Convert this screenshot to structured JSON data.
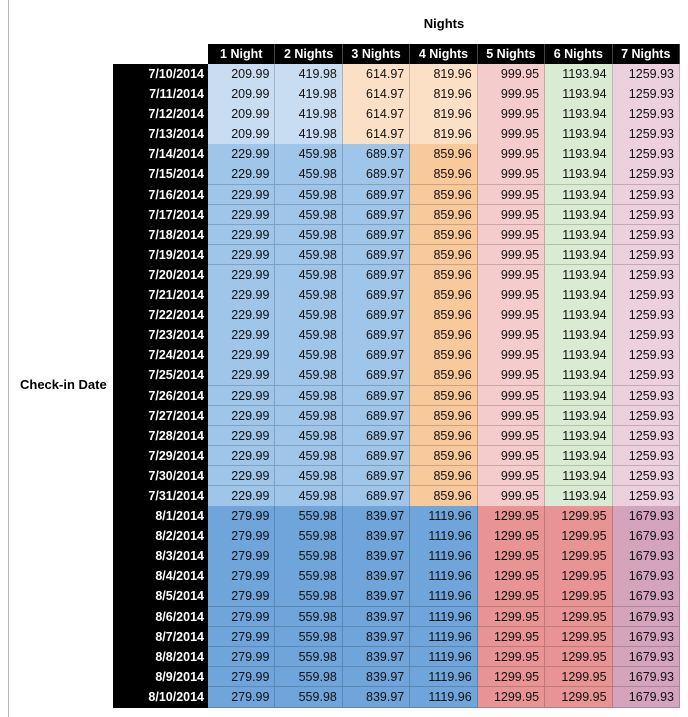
{
  "header": {
    "title": "Nights"
  },
  "row_header": "Check-in Date",
  "table": {
    "columns": [
      "1 Night",
      "2 Nights",
      "3 Nights",
      "4 Nights",
      "5 Nights",
      "6 Nights",
      "7 Nights"
    ],
    "rows": [
      [
        "7/10/2014",
        "209.99",
        "419.98",
        "614.97",
        "819.96",
        "999.95",
        "1193.94",
        "1259.93"
      ],
      [
        "7/11/2014",
        "209.99",
        "419.98",
        "614.97",
        "819.96",
        "999.95",
        "1193.94",
        "1259.93"
      ],
      [
        "7/12/2014",
        "209.99",
        "419.98",
        "614.97",
        "819.96",
        "999.95",
        "1193.94",
        "1259.93"
      ],
      [
        "7/13/2014",
        "209.99",
        "419.98",
        "614.97",
        "819.96",
        "999.95",
        "1193.94",
        "1259.93"
      ],
      [
        "7/14/2014",
        "229.99",
        "459.98",
        "689.97",
        "859.96",
        "999.95",
        "1193.94",
        "1259.93"
      ],
      [
        "7/15/2014",
        "229.99",
        "459.98",
        "689.97",
        "859.96",
        "999.95",
        "1193.94",
        "1259.93"
      ],
      [
        "7/16/2014",
        "229.99",
        "459.98",
        "689.97",
        "859.96",
        "999.95",
        "1193.94",
        "1259.93"
      ],
      [
        "7/17/2014",
        "229.99",
        "459.98",
        "689.97",
        "859.96",
        "999.95",
        "1193.94",
        "1259.93"
      ],
      [
        "7/18/2014",
        "229.99",
        "459.98",
        "689.97",
        "859.96",
        "999.95",
        "1193.94",
        "1259.93"
      ],
      [
        "7/19/2014",
        "229.99",
        "459.98",
        "689.97",
        "859.96",
        "999.95",
        "1193.94",
        "1259.93"
      ],
      [
        "7/20/2014",
        "229.99",
        "459.98",
        "689.97",
        "859.96",
        "999.95",
        "1193.94",
        "1259.93"
      ],
      [
        "7/21/2014",
        "229.99",
        "459.98",
        "689.97",
        "859.96",
        "999.95",
        "1193.94",
        "1259.93"
      ],
      [
        "7/22/2014",
        "229.99",
        "459.98",
        "689.97",
        "859.96",
        "999.95",
        "1193.94",
        "1259.93"
      ],
      [
        "7/23/2014",
        "229.99",
        "459.98",
        "689.97",
        "859.96",
        "999.95",
        "1193.94",
        "1259.93"
      ],
      [
        "7/24/2014",
        "229.99",
        "459.98",
        "689.97",
        "859.96",
        "999.95",
        "1193.94",
        "1259.93"
      ],
      [
        "7/25/2014",
        "229.99",
        "459.98",
        "689.97",
        "859.96",
        "999.95",
        "1193.94",
        "1259.93"
      ],
      [
        "7/26/2014",
        "229.99",
        "459.98",
        "689.97",
        "859.96",
        "999.95",
        "1193.94",
        "1259.93"
      ],
      [
        "7/27/2014",
        "229.99",
        "459.98",
        "689.97",
        "859.96",
        "999.95",
        "1193.94",
        "1259.93"
      ],
      [
        "7/28/2014",
        "229.99",
        "459.98",
        "689.97",
        "859.96",
        "999.95",
        "1193.94",
        "1259.93"
      ],
      [
        "7/29/2014",
        "229.99",
        "459.98",
        "689.97",
        "859.96",
        "999.95",
        "1193.94",
        "1259.93"
      ],
      [
        "7/30/2014",
        "229.99",
        "459.98",
        "689.97",
        "859.96",
        "999.95",
        "1193.94",
        "1259.93"
      ],
      [
        "7/31/2014",
        "229.99",
        "459.98",
        "689.97",
        "859.96",
        "999.95",
        "1193.94",
        "1259.93"
      ],
      [
        "8/1/2014",
        "279.99",
        "559.98",
        "839.97",
        "1119.96",
        "1299.95",
        "1299.95",
        "1679.93"
      ],
      [
        "8/2/2014",
        "279.99",
        "559.98",
        "839.97",
        "1119.96",
        "1299.95",
        "1299.95",
        "1679.93"
      ],
      [
        "8/3/2014",
        "279.99",
        "559.98",
        "839.97",
        "1119.96",
        "1299.95",
        "1299.95",
        "1679.93"
      ],
      [
        "8/4/2014",
        "279.99",
        "559.98",
        "839.97",
        "1119.96",
        "1299.95",
        "1299.95",
        "1679.93"
      ],
      [
        "8/5/2014",
        "279.99",
        "559.98",
        "839.97",
        "1119.96",
        "1299.95",
        "1299.95",
        "1679.93"
      ],
      [
        "8/6/2014",
        "279.99",
        "559.98",
        "839.97",
        "1119.96",
        "1299.95",
        "1299.95",
        "1679.93"
      ],
      [
        "8/7/2014",
        "279.99",
        "559.98",
        "839.97",
        "1119.96",
        "1299.95",
        "1299.95",
        "1679.93"
      ],
      [
        "8/8/2014",
        "279.99",
        "559.98",
        "839.97",
        "1119.96",
        "1299.95",
        "1299.95",
        "1679.93"
      ],
      [
        "8/9/2014",
        "279.99",
        "559.98",
        "839.97",
        "1119.96",
        "1299.95",
        "1299.95",
        "1679.93"
      ],
      [
        "8/10/2014",
        "279.99",
        "559.98",
        "839.97",
        "1119.96",
        "1299.95",
        "1299.95",
        "1679.93"
      ]
    ]
  }
}
